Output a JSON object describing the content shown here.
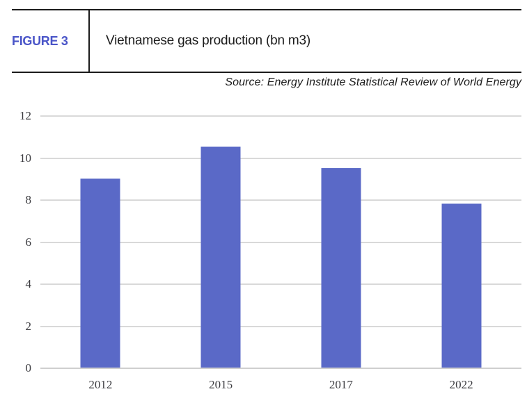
{
  "header": {
    "figure_label": "FIGURE 3",
    "title": "Vietnamese gas production (bn m3)"
  },
  "source_line": "Source: Energy Institute Statistical Review of World Energy",
  "colors": {
    "bar": "#5a69c7",
    "figure_label_blue": "#4a55c8",
    "gridline": "#d9d9d9",
    "gridline_baseline": "#cfcfcf",
    "axis_text": "#3c3c40",
    "rule": "#1b1b1b"
  },
  "chart_data": {
    "type": "bar",
    "title": "Vietnamese gas production (bn m3)",
    "categories": [
      "2012",
      "2015",
      "2017",
      "2022"
    ],
    "values": [
      9,
      10.5,
      9.5,
      7.8
    ],
    "unit": "bn m3",
    "xlabel": "",
    "ylabel": "",
    "ylim": [
      0,
      12
    ],
    "yticks": [
      0,
      2,
      4,
      6,
      8,
      10,
      12
    ],
    "grid": true,
    "legend": "none",
    "source": "Source: Energy Institute Statistical Review of World Energy"
  }
}
